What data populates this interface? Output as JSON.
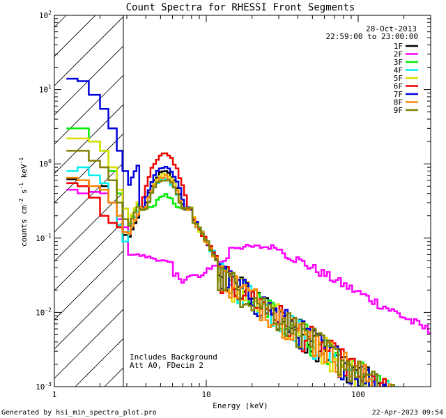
{
  "chart_data": {
    "type": "line",
    "title": "Count Spectra for RHESSI Front Segments",
    "xlabel": "Energy (keV)",
    "ylabel_main": "counts cm",
    "ylabel_sup1": "-2",
    "ylabel_s": " s",
    "ylabel_sup2": "-1",
    "ylabel_kev": " keV",
    "ylabel_sup3": "-1",
    "xscale": "log",
    "yscale": "log",
    "xlim": [
      1,
      300
    ],
    "ylim": [
      0.001,
      100
    ],
    "x_ticks": [
      {
        "value": 1,
        "label": "1"
      },
      {
        "value": 10,
        "label": "10"
      },
      {
        "value": 100,
        "label": "100"
      }
    ],
    "y_ticks": [
      {
        "value": 100,
        "base": "10",
        "exp": "2"
      },
      {
        "value": 10,
        "base": "10",
        "exp": "1"
      },
      {
        "value": 1,
        "base": "10",
        "exp": "0"
      },
      {
        "value": 0.1,
        "base": "10",
        "exp": "-1"
      },
      {
        "value": 0.01,
        "base": "10",
        "exp": "-2"
      },
      {
        "value": 0.001,
        "base": "10",
        "exp": "-3"
      }
    ],
    "hatch_region": [
      1,
      3
    ],
    "date": "28-Oct-2013",
    "time_range": "22:59:00 to 23:00:00",
    "annotation_line1": "Includes Background",
    "annotation_line2": "Att A0, FDecim 2",
    "legend_position": "top-right",
    "series": [
      {
        "name": "1F",
        "color": "#000000",
        "lowE": [
          0.62,
          0.6,
          0.42,
          0.5,
          0.3,
          0.15,
          0.11,
          0.1
        ],
        "peak": 0.78
      },
      {
        "name": "2F",
        "color": "#ff00ff",
        "lowE": [
          0.45,
          0.4,
          0.42,
          0.4,
          0.3,
          0.18,
          0.14,
          0.12
        ],
        "peak": 0.045
      },
      {
        "name": "3F",
        "color": "#00ee00",
        "lowE": [
          3.0,
          3.0,
          2.0,
          1.5,
          0.8,
          0.4,
          0.25,
          0.15
        ],
        "peak": 0.38
      },
      {
        "name": "4F",
        "color": "#00eeee",
        "lowE": [
          0.8,
          0.9,
          0.7,
          0.55,
          0.3,
          0.15,
          0.09,
          0.12
        ],
        "peak": 0.62
      },
      {
        "name": "5F",
        "color": "#dddd00",
        "lowE": [
          2.2,
          2.2,
          2.0,
          1.5,
          0.9,
          0.45,
          0.25,
          0.16
        ],
        "peak": 0.72
      },
      {
        "name": "6F",
        "color": "#ee0000",
        "lowE": [
          0.55,
          0.5,
          0.35,
          0.2,
          0.16,
          0.14,
          0.12,
          0.11
        ],
        "peak": 1.35
      },
      {
        "name": "7F",
        "color": "#0000dd",
        "lowE": [
          14,
          13,
          8.5,
          5.5,
          3.0,
          1.5,
          0.8,
          0.5
        ],
        "peak": 0.92
      },
      {
        "name": "8F",
        "color": "#ff8800",
        "lowE": [
          0.65,
          0.6,
          0.5,
          0.45,
          0.3,
          0.2,
          0.12,
          0.11
        ],
        "peak": 0.68
      },
      {
        "name": "9F",
        "color": "#808000",
        "lowE": [
          1.5,
          1.5,
          1.1,
          0.9,
          0.6,
          0.3,
          0.18,
          0.14
        ],
        "peak": 0.62
      }
    ]
  },
  "footer": {
    "left": "Generated by hsi_min_spectra_plot.pro",
    "right": "22-Apr-2023 09:54"
  }
}
